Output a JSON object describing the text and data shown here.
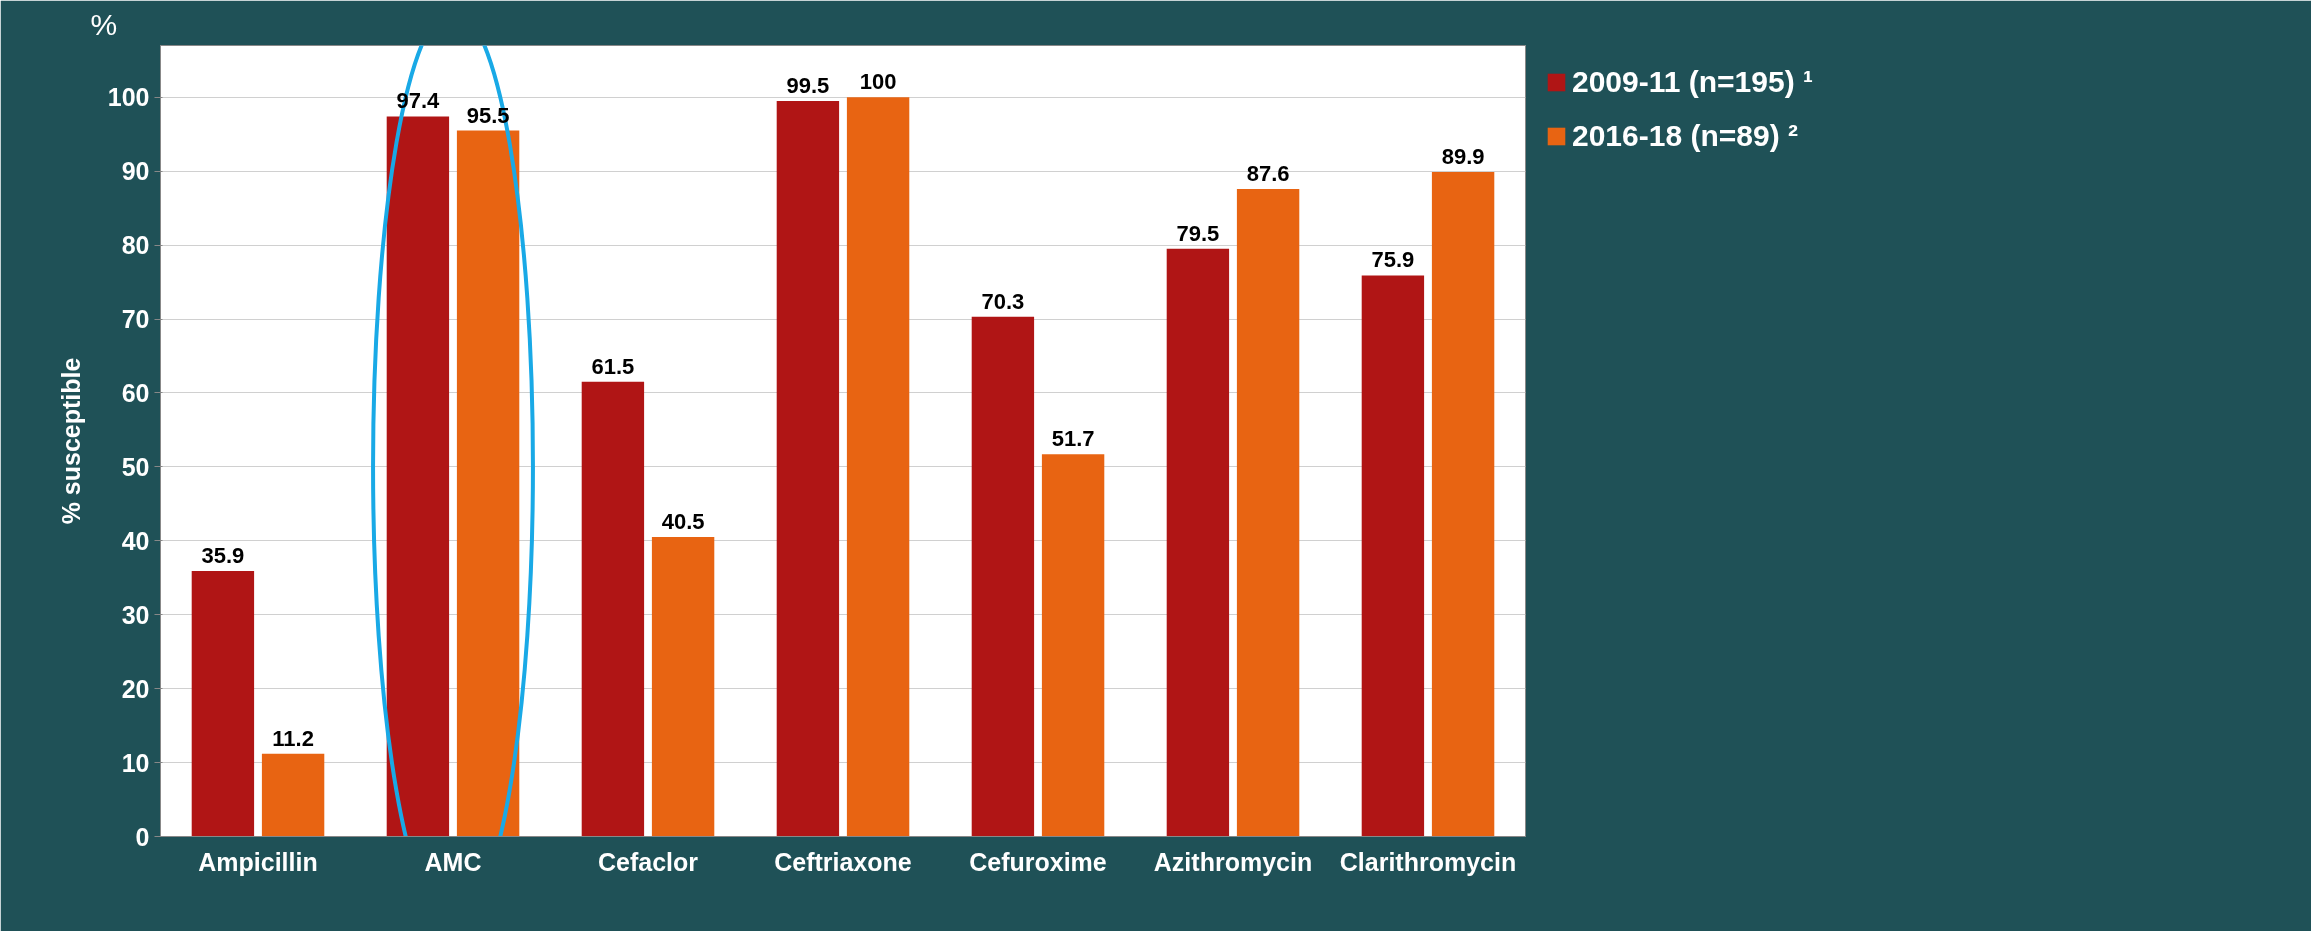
{
  "chart_data": {
    "type": "bar",
    "ylabel": "% susceptible",
    "annotations": [
      "%"
    ],
    "categories": [
      "Ampicillin",
      "AMC",
      "Cefaclor",
      "Ceftriaxone",
      "Cefuroxime",
      "Azithromycin",
      "Clarithromycin"
    ],
    "series": [
      {
        "name": "2009-11 (n=195) ¹",
        "color": "#b01515",
        "values": [
          35.9,
          97.4,
          61.5,
          99.5,
          70.3,
          79.5,
          75.9
        ]
      },
      {
        "name": "2016-18 (n=89) ²",
        "color": "#e86412",
        "values": [
          11.2,
          95.5,
          40.5,
          100,
          51.7,
          87.6,
          89.9
        ]
      }
    ],
    "ylim": [
      0,
      107
    ],
    "yticks": [
      0,
      10,
      20,
      30,
      40,
      50,
      60,
      70,
      80,
      90,
      100
    ],
    "grid": "y",
    "legend": "top right",
    "data_labels": true
  }
}
